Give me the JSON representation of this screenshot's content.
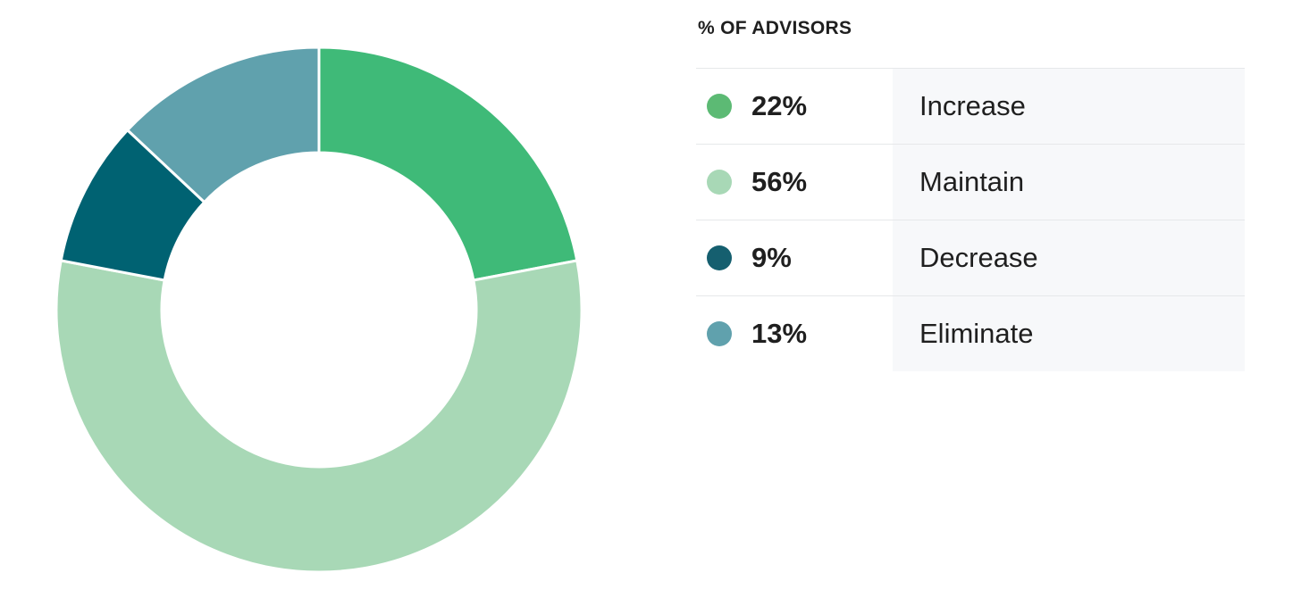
{
  "chart_data": {
    "type": "pie",
    "donut": true,
    "legend_title": "% OF ADVISORS",
    "slices": [
      {
        "label": "Increase",
        "value": 22,
        "display": "22%",
        "color": "#3fba78"
      },
      {
        "label": "Maintain",
        "value": 56,
        "display": "56%",
        "color": "#a8d8b6"
      },
      {
        "label": "Decrease",
        "value": 9,
        "display": "9%",
        "color": "#006272"
      },
      {
        "label": "Eliminate",
        "value": 13,
        "display": "13%",
        "color": "#60a1ad"
      }
    ],
    "legend_swatch_colors": [
      "#5cba74",
      "#a8d8b6",
      "#155f6f",
      "#60a1ad"
    ],
    "legend_placement": "right"
  }
}
